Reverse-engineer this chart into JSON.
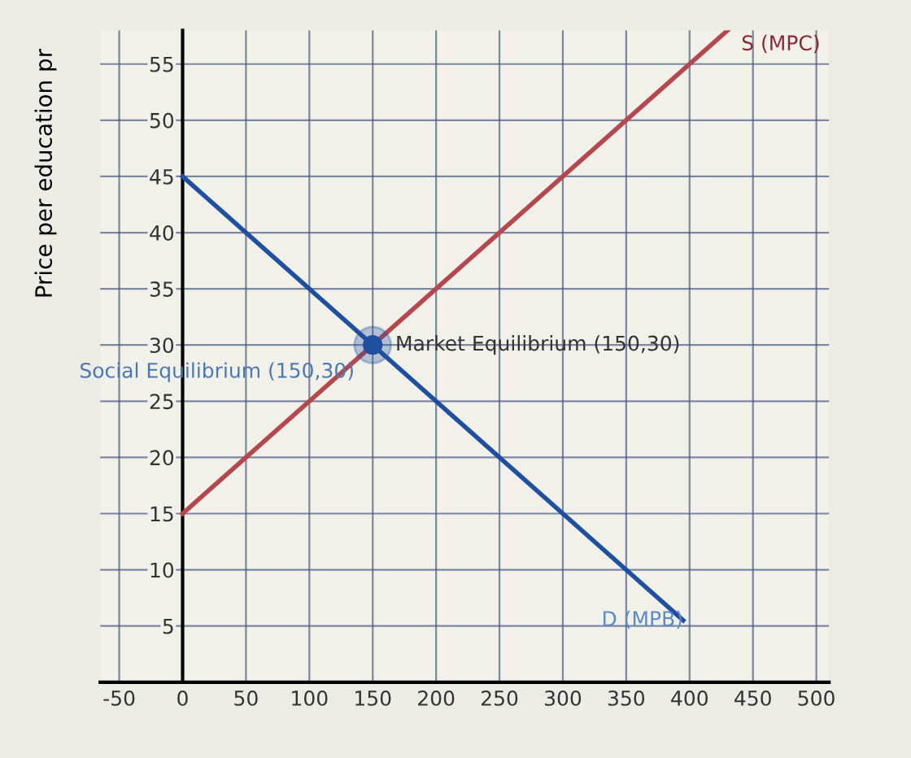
{
  "chart_data": {
    "type": "line",
    "ylabel": "Price per education pr",
    "xlim": [
      -65,
      510
    ],
    "ylim": [
      0,
      58
    ],
    "xticks": [
      -50,
      0,
      50,
      100,
      150,
      200,
      250,
      300,
      350,
      400,
      450,
      500
    ],
    "yticks": [
      5,
      10,
      15,
      20,
      25,
      30,
      35,
      40,
      45,
      50,
      55
    ],
    "grid": true,
    "legend": false,
    "marker": "none",
    "line_style": "solid",
    "series": [
      {
        "color": "#b5474f",
        "x": [
          0,
          430
        ],
        "values": [
          15,
          58
        ]
      },
      {
        "color": "#1f4fa0",
        "x": [
          0,
          395
        ],
        "values": [
          45,
          5.5
        ]
      },
      {
        "type": "scatter",
        "color": "#1f4fa0",
        "marker": "circle",
        "x": [
          150
        ],
        "values": [
          30
        ]
      }
    ],
    "annotations": [
      {
        "text": "Market Equilibrium (150,30)",
        "x": 150,
        "y": 30
      },
      {
        "text": "Social Equilibrium (150,30)",
        "x": 150,
        "y": 30
      },
      {
        "text": "D (MPB)",
        "x": 395,
        "y": 5.5
      },
      {
        "text": "S (MPC)",
        "x": 430,
        "y": 58
      }
    ]
  }
}
